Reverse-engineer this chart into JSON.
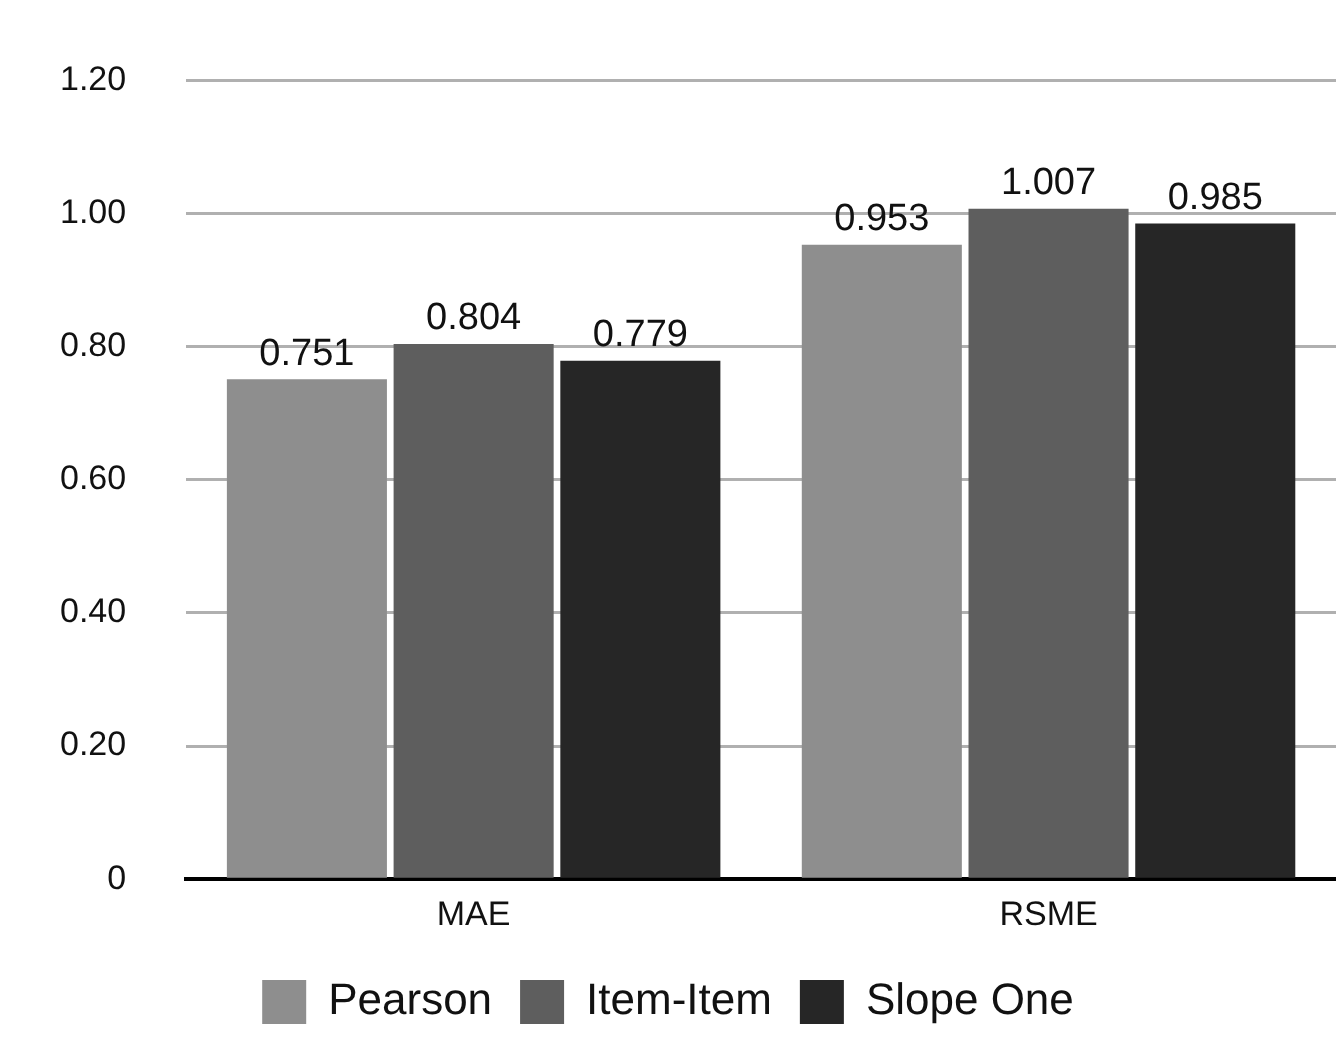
{
  "chart_data": {
    "type": "bar",
    "categories": [
      "MAE",
      "RSME"
    ],
    "series": [
      {
        "name": "Pearson",
        "color": "#8e8e8e",
        "values": [
          0.751,
          0.953
        ]
      },
      {
        "name": "Item-Item",
        "color": "#5e5e5e",
        "values": [
          0.804,
          1.007
        ]
      },
      {
        "name": "Slope One",
        "color": "#262626",
        "values": [
          0.779,
          0.985
        ]
      }
    ],
    "ylim": [
      0,
      1.2
    ],
    "yticks": [
      {
        "value": 0,
        "label": "0"
      },
      {
        "value": 0.2,
        "label": "0.20"
      },
      {
        "value": 0.4,
        "label": "0.40"
      },
      {
        "value": 0.6,
        "label": "0.60"
      },
      {
        "value": 0.8,
        "label": "0.80"
      },
      {
        "value": 1.0,
        "label": "1.00"
      },
      {
        "value": 1.2,
        "label": "1.20"
      }
    ],
    "grid": "y",
    "legend": "bottom",
    "data_labels": true
  }
}
